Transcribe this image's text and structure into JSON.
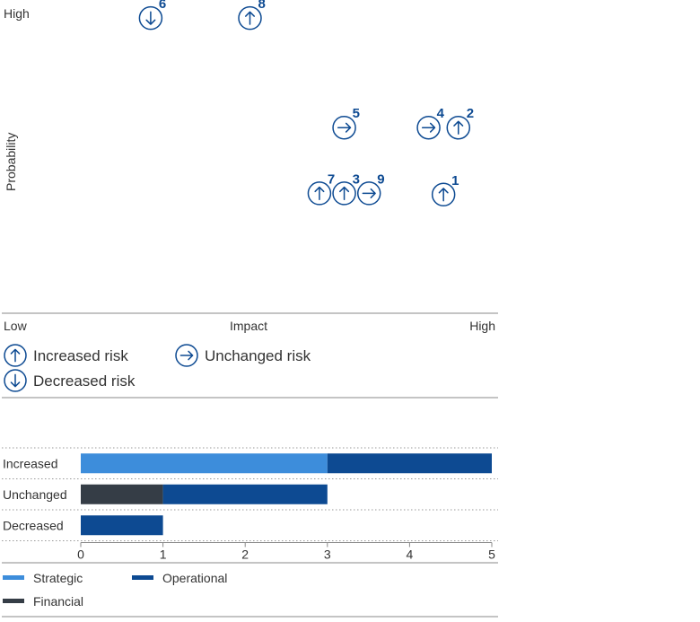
{
  "colors": {
    "blue_dark": "#0d4a92",
    "blue_light": "#3d8ddb",
    "financial": "#353d46",
    "rule": "#888888",
    "text": "#333333"
  },
  "scatter": {
    "type": "scatter",
    "y_axis": {
      "label": "Probability",
      "high": "High"
    },
    "x_axis": {
      "label": "Impact",
      "low": "Low",
      "high": "High"
    },
    "points": [
      {
        "id": "1",
        "impact": 4.45,
        "probability": 1.95,
        "trend": "increased"
      },
      {
        "id": "2",
        "impact": 4.6,
        "probability": 3.05,
        "trend": "increased"
      },
      {
        "id": "3",
        "impact": 3.45,
        "probability": 1.97,
        "trend": "increased"
      },
      {
        "id": "4",
        "impact": 4.3,
        "probability": 3.05,
        "trend": "unchanged"
      },
      {
        "id": "5",
        "impact": 3.45,
        "probability": 3.05,
        "trend": "unchanged"
      },
      {
        "id": "6",
        "impact": 1.5,
        "probability": 4.85,
        "trend": "decreased"
      },
      {
        "id": "7",
        "impact": 3.2,
        "probability": 1.97,
        "trend": "increased"
      },
      {
        "id": "8",
        "impact": 2.5,
        "probability": 4.85,
        "trend": "increased"
      },
      {
        "id": "9",
        "impact": 3.7,
        "probability": 1.97,
        "trend": "unchanged"
      }
    ],
    "legend": [
      {
        "key": "increased",
        "label": "Increased risk"
      },
      {
        "key": "unchanged",
        "label": "Unchanged risk"
      },
      {
        "key": "decreased",
        "label": "Decreased risk"
      }
    ]
  },
  "chart_data": {
    "type": "bar",
    "orientation": "horizontal",
    "stacked": true,
    "categories": [
      "Increased",
      "Unchanged",
      "Decreased"
    ],
    "series": [
      {
        "name": "Strategic",
        "values": [
          3,
          0,
          0
        ],
        "color": "#3d8ddb"
      },
      {
        "name": "Financial",
        "values": [
          0,
          1,
          0
        ],
        "color": "#353d46"
      },
      {
        "name": "Operational",
        "values": [
          2,
          2,
          1
        ],
        "color": "#0d4a92"
      }
    ],
    "xlim": [
      0,
      5
    ],
    "ticks": [
      0,
      1,
      2,
      3,
      4,
      5
    ],
    "grid": "dotted-horizontal",
    "legend_position": "bottom",
    "legend": [
      {
        "name": "Strategic",
        "color": "#3d8ddb"
      },
      {
        "name": "Operational",
        "color": "#0d4a92"
      },
      {
        "name": "Financial",
        "color": "#353d46"
      }
    ]
  }
}
